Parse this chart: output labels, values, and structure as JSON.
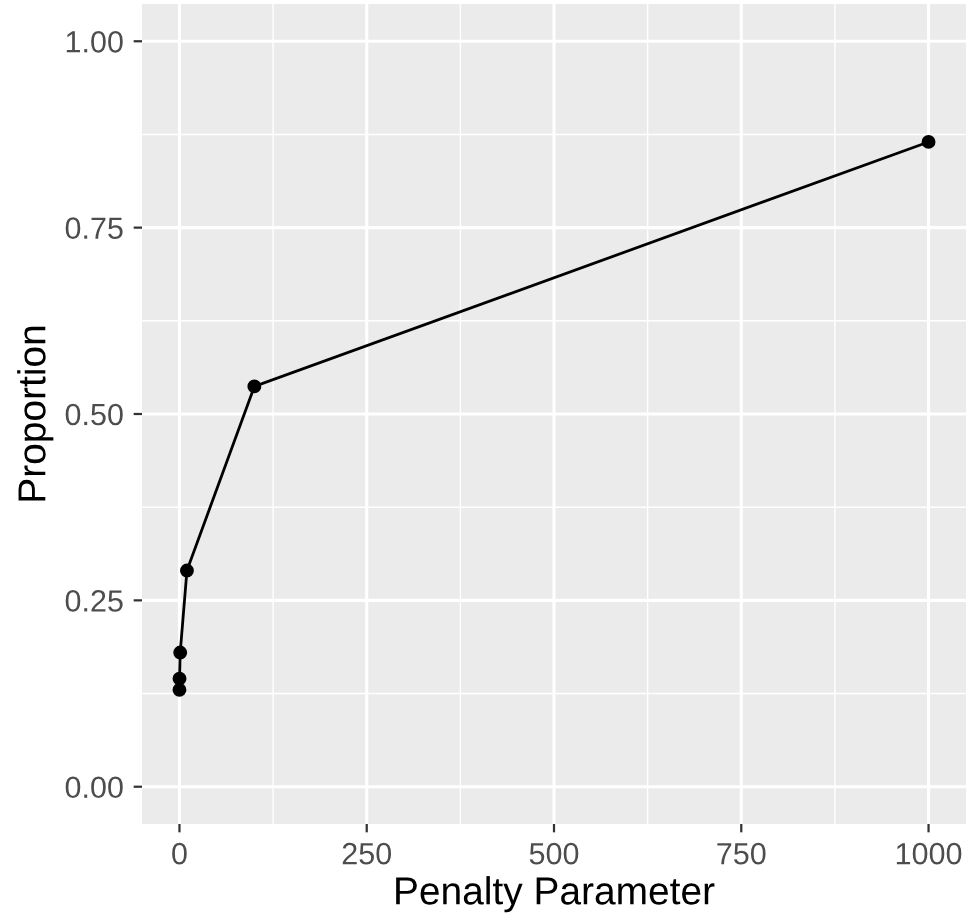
{
  "chart_data": {
    "type": "line",
    "xlabel": "Penalty Parameter",
    "ylabel": "Proportion",
    "x": [
      0.01,
      0.1,
      1,
      10,
      100,
      1000
    ],
    "series": [
      {
        "color": "#000000",
        "values": [
          0.13,
          0.145,
          0.18,
          0.29,
          0.537,
          0.865
        ]
      }
    ],
    "xlim": [
      -50,
      1050
    ],
    "ylim": [
      -0.05,
      1.05
    ],
    "xticks": [
      0,
      250,
      500,
      750,
      1000
    ],
    "yticks": [
      {
        "value": 0,
        "label": "0.00"
      },
      {
        "value": 0.25,
        "label": "0.25"
      },
      {
        "value": 0.5,
        "label": "0.50"
      },
      {
        "value": 0.75,
        "label": "0.75"
      },
      {
        "value": 1,
        "label": "1.00"
      }
    ],
    "grid": true,
    "marker": "circle",
    "line_style": "solid",
    "legend": false
  }
}
